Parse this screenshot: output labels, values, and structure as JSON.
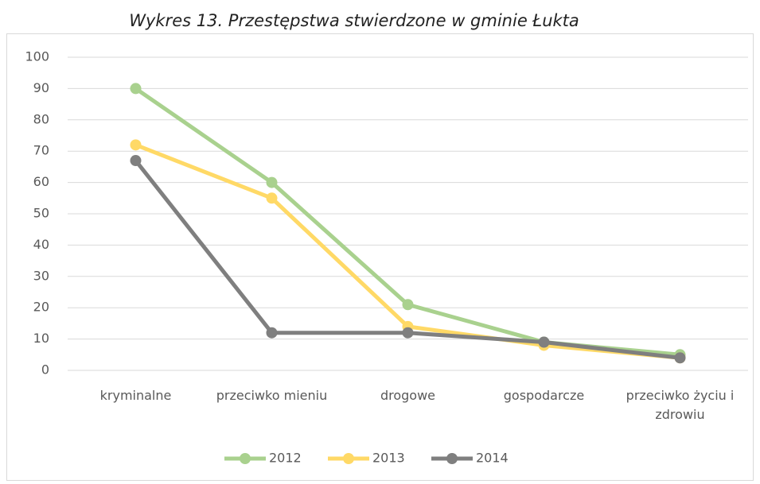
{
  "chart_data": {
    "type": "line",
    "title": "Wykres 13. Przestępstwa stwierdzone w gminie Łukta",
    "categories": [
      "kryminalne",
      "przeciwko mieniu",
      "drogowe",
      "gospodarcze",
      "przeciwko życiu i zdrowiu"
    ],
    "series": [
      {
        "name": "2012",
        "color": "#a9d18e",
        "values": [
          90,
          60,
          21,
          9,
          5
        ]
      },
      {
        "name": "2013",
        "color": "#ffd966",
        "values": [
          72,
          55,
          14,
          8,
          4
        ]
      },
      {
        "name": "2014",
        "color": "#7f7f7f",
        "values": [
          67,
          12,
          12,
          9,
          4
        ]
      }
    ],
    "ylim": [
      0,
      100
    ],
    "yticks": [
      0,
      10,
      20,
      30,
      40,
      50,
      60,
      70,
      80,
      90,
      100
    ],
    "grid": true,
    "legend": "bottom"
  }
}
